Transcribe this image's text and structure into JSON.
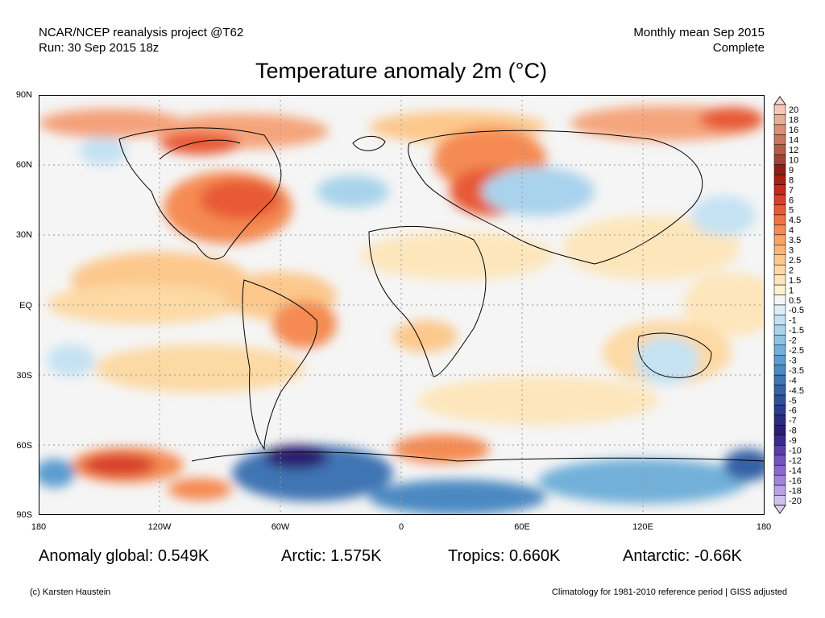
{
  "header": {
    "left_line1": "NCAR/NCEP reanalysis project @T62",
    "left_line2": "Run: 30 Sep 2015 18z",
    "right_line1": "Monthly mean Sep 2015",
    "right_line2": "Complete"
  },
  "title": "Temperature anomaly 2m (°C)",
  "axes": {
    "y_ticks": [
      "90N",
      "60N",
      "30N",
      "EQ",
      "30S",
      "60S",
      "90S"
    ],
    "x_ticks": [
      "180",
      "120W",
      "60W",
      "0",
      "60E",
      "120E",
      "180"
    ]
  },
  "colorbar": {
    "labels": [
      "20",
      "18",
      "16",
      "14",
      "12",
      "10",
      "9",
      "8",
      "7",
      "6",
      "5",
      "4.5",
      "4",
      "3.5",
      "3",
      "2.5",
      "2",
      "1.5",
      "1",
      "0.5",
      "-0.5",
      "-1",
      "-1.5",
      "-2",
      "-2.5",
      "-3",
      "-3.5",
      "-4",
      "-4.5",
      "-5",
      "-6",
      "-7",
      "-8",
      "-9",
      "-10",
      "-12",
      "-14",
      "-16",
      "-18",
      "-20"
    ],
    "colors": [
      "#f5c8b8",
      "#e8ac98",
      "#d98f78",
      "#c7755e",
      "#b45c47",
      "#a04535",
      "#8c1f14",
      "#a81f16",
      "#c4291c",
      "#d8402a",
      "#e85a36",
      "#f07344",
      "#f58b52",
      "#f8a363",
      "#fab676",
      "#fcc88c",
      "#fdd9a4",
      "#fde6bb",
      "#fef0d2",
      "#f5f5f5",
      "#ddeef8",
      "#c5e2f3",
      "#a9d3ec",
      "#8dc2e3",
      "#72b0d9",
      "#5b9dcf",
      "#4b89c2",
      "#3f75b4",
      "#3662a6",
      "#2f4f99",
      "#2a3d8c",
      "#2a2c80",
      "#2b1f6e",
      "#3b2a8c",
      "#5a3fa8",
      "#7353bd",
      "#8a69cc",
      "#a285da",
      "#b9a2e6",
      "#cfc0f0"
    ],
    "top_color": "#f9d9cc",
    "bottom_color": "#ddd3f6"
  },
  "stats": {
    "global": "Anomaly global: 0.549K",
    "arctic": "Arctic: 1.575K",
    "tropics": "Tropics: 0.660K",
    "antarctic": "Antarctic: -0.66K"
  },
  "footer": {
    "credit": "(c) Karsten Haustein",
    "note": "Climatology for 1981-2010 reference period | GISS adjusted"
  },
  "map": {
    "background": "#f5f5f5",
    "land_outline": "#000000",
    "grid_color": "#999999"
  }
}
